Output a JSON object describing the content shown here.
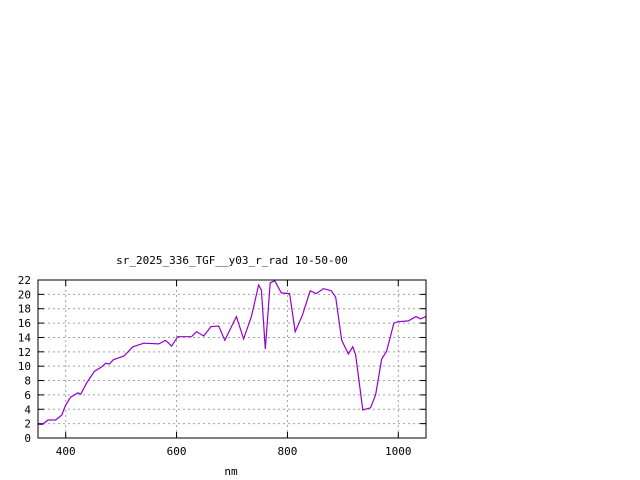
{
  "chart_data": {
    "type": "line",
    "title": "sr_2025_336_TGF__y03_r_rad 10-50-00",
    "xlabel": "nm",
    "ylabel": "",
    "xlim": [
      350,
      1050
    ],
    "ylim": [
      0,
      22
    ],
    "xticks": [
      400,
      600,
      800,
      1000
    ],
    "yticks": [
      0,
      2,
      4,
      6,
      8,
      10,
      12,
      14,
      16,
      18,
      20,
      22
    ],
    "grid": true,
    "line_color": "#9400d3",
    "series": [
      {
        "x": [
          350,
          358,
          368,
          382,
          393,
          400,
          409,
          422,
          427,
          438,
          452,
          465,
          472,
          479,
          486,
          505,
          521,
          541,
          568,
          580,
          591,
          602,
          627,
          636,
          649,
          662,
          676,
          687,
          699,
          708,
          721,
          735,
          748,
          753,
          760,
          769,
          777,
          789,
          804,
          814,
          827,
          841,
          852,
          865,
          879,
          887,
          898,
          910,
          918,
          923,
          936,
          950,
          959,
          970,
          979,
          992,
          1000,
          1018,
          1032,
          1040,
          1050
        ],
        "y": [
          1.9,
          1.9,
          2.5,
          2.5,
          3.2,
          4.6,
          5.7,
          6.3,
          6.1,
          7.7,
          9.3,
          9.9,
          10.4,
          10.3,
          10.9,
          11.4,
          12.7,
          13.2,
          13.1,
          13.6,
          12.8,
          14.1,
          14.1,
          14.8,
          14.2,
          15.5,
          15.6,
          13.6,
          15.5,
          16.9,
          13.8,
          16.9,
          21.3,
          20.6,
          12.4,
          21.6,
          21.9,
          20.2,
          20.1,
          14.8,
          17.1,
          20.5,
          20.1,
          20.8,
          20.5,
          19.6,
          13.6,
          11.7,
          12.7,
          11.6,
          3.9,
          4.2,
          6.0,
          11.0,
          12.1,
          16.0,
          16.2,
          16.3,
          16.9,
          16.6,
          16.9
        ]
      }
    ]
  }
}
